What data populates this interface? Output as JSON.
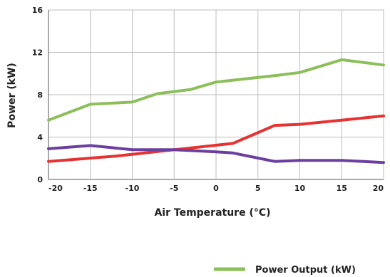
{
  "chart_data": {
    "type": "line",
    "xlabel": "Air Temperature (°C)",
    "ylabel": "Power (kW)",
    "xlim": [
      -20,
      20
    ],
    "ylim": [
      0,
      16
    ],
    "xticks": [
      -20,
      -15,
      -10,
      -5,
      0,
      5,
      10,
      15,
      20
    ],
    "yticks": [
      0,
      4,
      8,
      12,
      16
    ],
    "grid": true,
    "legend_position": "bottom-right",
    "series": [
      {
        "name": "Power Output (kW)",
        "color": "#8cbf5a",
        "x": [
          -20,
          -15,
          -10,
          -7,
          -3,
          0,
          7,
          10,
          15,
          20
        ],
        "y": [
          5.6,
          7.1,
          7.3,
          8.1,
          8.5,
          9.2,
          9.8,
          10.1,
          11.3,
          10.8
        ]
      },
      {
        "color": "#e83232",
        "x": [
          -20,
          -12,
          -5,
          2,
          7,
          10,
          15,
          20
        ],
        "y": [
          1.7,
          2.2,
          2.8,
          3.4,
          5.1,
          5.2,
          5.6,
          6.0
        ]
      },
      {
        "color": "#6a3fa0",
        "x": [
          -20,
          -15,
          -10,
          -5,
          0,
          2,
          7,
          10,
          15,
          20
        ],
        "y": [
          2.9,
          3.2,
          2.8,
          2.8,
          2.6,
          2.5,
          1.7,
          1.8,
          1.8,
          1.6
        ]
      }
    ]
  }
}
